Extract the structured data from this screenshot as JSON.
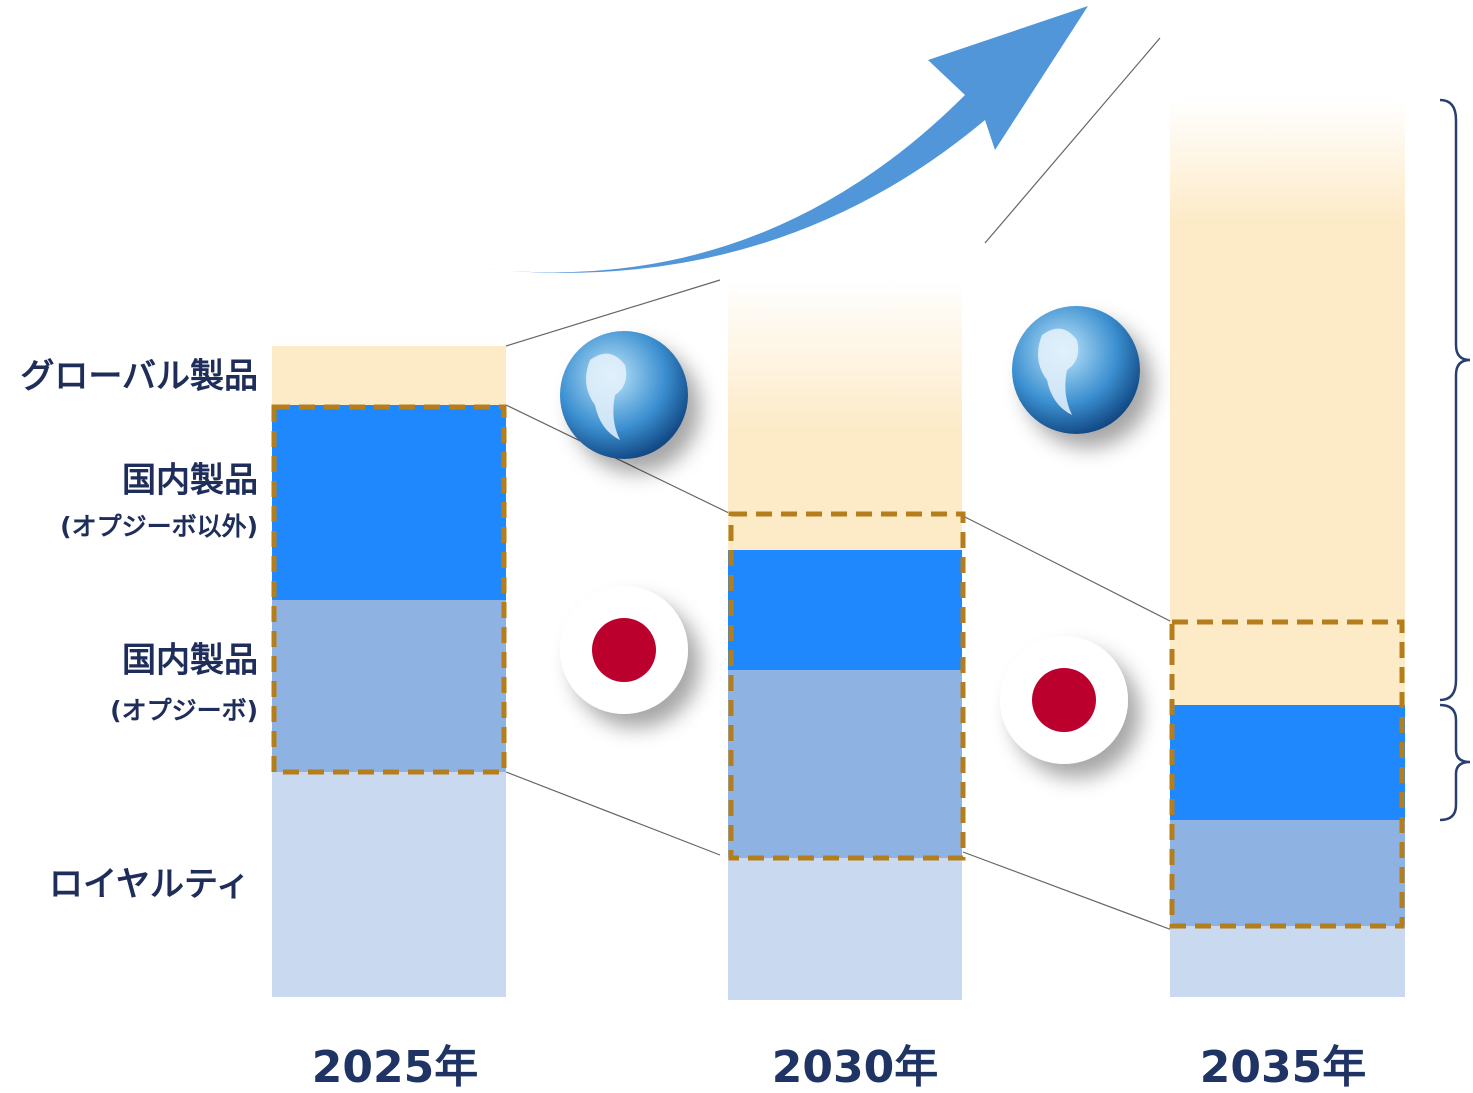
{
  "labels": [
    {
      "title": "グローバル製品"
    },
    {
      "title": "国内製品",
      "sub": "(オプジーボ以外)"
    },
    {
      "title": "国内製品",
      "sub": "(オプジーボ)"
    },
    {
      "title": "ロイヤルティ"
    }
  ],
  "years": [
    "2025年",
    "2030年",
    "2035年"
  ]
}
